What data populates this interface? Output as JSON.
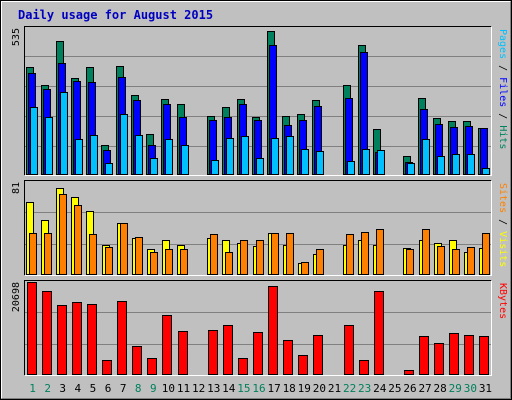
{
  "chart_data": {
    "type": "bar",
    "title": "Daily usage for August 2015",
    "categories": [
      "1",
      "2",
      "3",
      "4",
      "5",
      "6",
      "7",
      "8",
      "9",
      "10",
      "11",
      "12",
      "13",
      "14",
      "15",
      "16",
      "17",
      "18",
      "19",
      "20",
      "21",
      "22",
      "23",
      "24",
      "25",
      "26",
      "27",
      "28",
      "29",
      "30",
      "31"
    ],
    "weekend_days": [
      "1",
      "2",
      "8",
      "9",
      "15",
      "16",
      "22",
      "23",
      "29",
      "30"
    ],
    "panels": [
      {
        "id": "pages_files_hits",
        "ymax": 535,
        "ymax_label": "535",
        "right_label": {
          "pages": "Pages",
          "files": "Files",
          "hits": "Hits",
          "sep": " / "
        },
        "series": [
          {
            "name": "Hits",
            "color": "#00805c",
            "values": [
              390,
              325,
              485,
              350,
              390,
              110,
              395,
              290,
              150,
              275,
              255,
              null,
              212,
              245,
              273,
              210,
              520,
              215,
              220,
              272,
              null,
              325,
              470,
              165,
              null,
              68,
              280,
              205,
              195,
              195,
              170
            ]
          },
          {
            "name": "Files",
            "color": "#0000ff",
            "values": [
              370,
              310,
              405,
              340,
              335,
              90,
              355,
              270,
              110,
              255,
              210,
              null,
              200,
              210,
              255,
              200,
              470,
              180,
              200,
              250,
              null,
              280,
              445,
              82,
              null,
              48,
              240,
              185,
              175,
              178,
              170
            ]
          },
          {
            "name": "Pages",
            "color": "#00c0ff",
            "values": [
              245,
              210,
              300,
              130,
              145,
              45,
              220,
              145,
              60,
              130,
              110,
              null,
              55,
              135,
              140,
              60,
              135,
              140,
              95,
              85,
              null,
              50,
              95,
              90,
              null,
              42,
              130,
              70,
              75,
              75,
              25
            ]
          }
        ]
      },
      {
        "id": "sites_visits",
        "ymax": 81,
        "ymax_label": "81",
        "right_label": {
          "sites": "Sites",
          "visits": "Visits",
          "sep": " / "
        },
        "series": [
          {
            "name": "Visits",
            "color": "#ffff00",
            "values": [
              63,
              47,
              75,
              67,
              55,
              26,
              45,
              32,
              22,
              30,
              26,
              null,
              32,
              30,
              28,
              25,
              36,
              26,
              10,
              18,
              null,
              26,
              30,
              26,
              null,
              23,
              30,
              28,
              30,
              20,
              23
            ]
          },
          {
            "name": "Sites",
            "color": "#ff8000",
            "values": [
              36,
              36,
              70,
              60,
              35,
              24,
              45,
              33,
              20,
              22,
              22,
              null,
              35,
              20,
              30,
              30,
              36,
              36,
              11,
              22,
              null,
              35,
              37,
              40,
              null,
              22,
              40,
              25,
              22,
              24,
              36
            ]
          }
        ]
      },
      {
        "id": "kbytes",
        "ymax": 20698,
        "ymax_label": "20698",
        "right_label": {
          "kbytes": "KBytes"
        },
        "series": [
          {
            "name": "KBytes",
            "color": "#ff0000",
            "values": [
              20400,
              18400,
              15400,
              16000,
              15600,
              3200,
              16200,
              6300,
              3800,
              13200,
              9700,
              null,
              9800,
              11000,
              3800,
              9500,
              19700,
              7700,
              4400,
              8900,
              null,
              11000,
              3200,
              18400,
              null,
              1200,
              8600,
              7100,
              9200,
              8900,
              8500
            ]
          }
        ]
      }
    ]
  }
}
